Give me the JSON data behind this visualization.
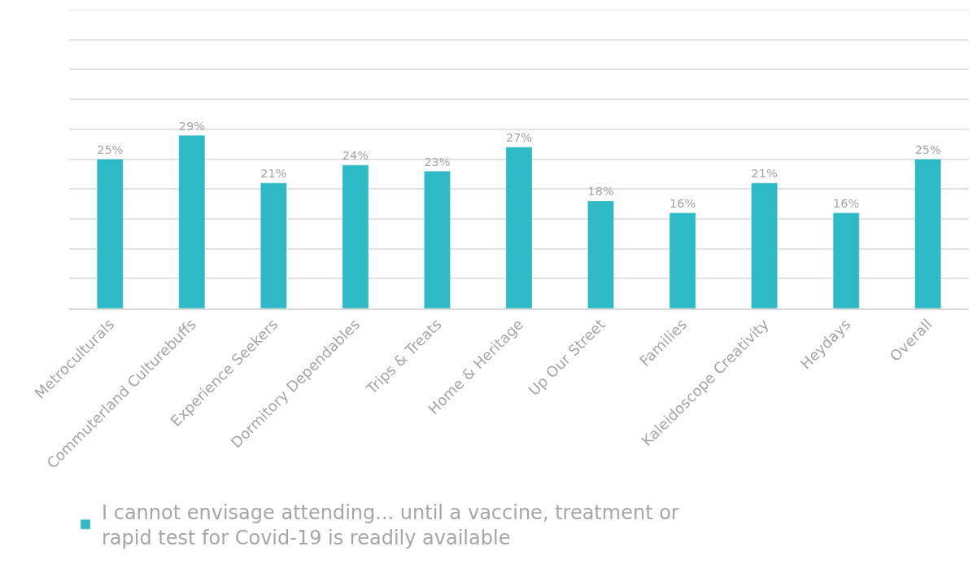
{
  "chart_data": {
    "type": "bar",
    "categories": [
      "Metroculturals",
      "Commuterland Culturebuffs",
      "Experience Seekers",
      "Dormitory Dependables",
      "Trips & Treats",
      "Home & Heritage",
      "Up Our Street",
      "Families",
      "Kaleidoscope Creativity",
      "Heydays",
      "Overall"
    ],
    "series": [
      {
        "name": "I cannot envisage attending... until a vaccine, treatment or rapid test for Covid-19 is readily available",
        "color": "#2eb9c6",
        "values": [
          25,
          29,
          21,
          24,
          23,
          27,
          18,
          16,
          21,
          16,
          25
        ],
        "value_labels": [
          "25%",
          "29%",
          "21%",
          "24%",
          "23%",
          "27%",
          "18%",
          "16%",
          "21%",
          "16%",
          "25%"
        ]
      }
    ],
    "ylim": [
      0,
      50
    ],
    "yticks": [
      {
        "value": 0,
        "label": null
      },
      {
        "value": 5,
        "label": null
      },
      {
        "value": 10,
        "label": null
      },
      {
        "value": 15,
        "label": null
      },
      {
        "value": 20,
        "label": null
      },
      {
        "value": 25,
        "label": null
      },
      {
        "value": 30,
        "label": null
      },
      {
        "value": 35,
        "label": null
      },
      {
        "value": 40,
        "label": null
      },
      {
        "value": 45,
        "label": null
      },
      {
        "value": 50,
        "label": null
      }
    ],
    "grid": "y",
    "legend": "bottom",
    "tick_labels": "x"
  }
}
